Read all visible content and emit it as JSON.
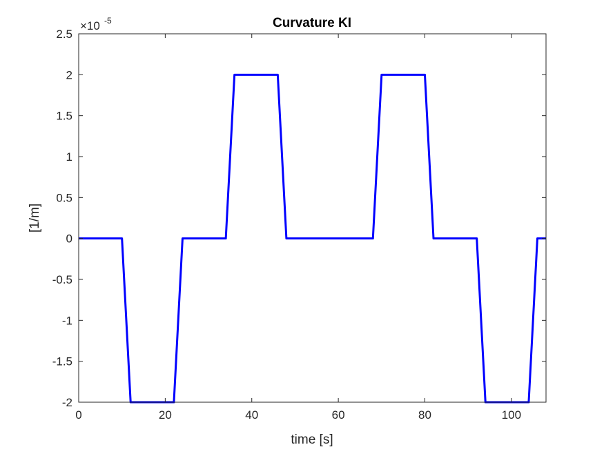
{
  "chart_data": {
    "type": "line",
    "title": "Curvature KI",
    "xlabel": "time [s]",
    "ylabel": "[1/m]",
    "xlim": [
      0,
      108
    ],
    "ylim": [
      -2.0,
      2.5
    ],
    "y_exponent_label": {
      "base": "×10",
      "power": "-5"
    },
    "x_ticks": [
      0,
      20,
      40,
      60,
      80,
      100
    ],
    "x_tick_labels": [
      "0",
      "20",
      "40",
      "60",
      "80",
      "100"
    ],
    "y_ticks": [
      2.5,
      2,
      1.5,
      1,
      0.5,
      0,
      -0.5,
      -1,
      -1.5,
      -2
    ],
    "y_tick_labels": [
      "2.5",
      "2",
      "1.5",
      "1",
      "0.5",
      "0",
      "-0.5",
      "-1",
      "-1.5",
      "-2"
    ],
    "grid": false,
    "series": [
      {
        "color": "#0000ff",
        "x": [
          0,
          10,
          12,
          22,
          24,
          34,
          36,
          46,
          48,
          68,
          70,
          80,
          82,
          92,
          94,
          104,
          106,
          108
        ],
        "y": [
          0,
          0,
          -2,
          -2,
          0,
          0,
          2,
          2,
          0,
          0,
          2,
          2,
          0,
          0,
          -2,
          -2,
          0,
          0
        ]
      }
    ]
  }
}
